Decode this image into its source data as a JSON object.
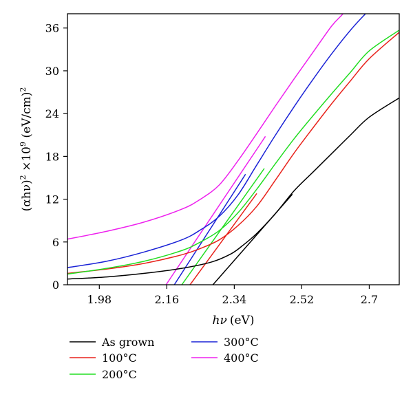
{
  "chart_data": {
    "type": "line",
    "title": "",
    "xlabel_symbol": "hν",
    "xlabel_unit": "(eV)",
    "ylabel_parts": {
      "lhs": "(αhν)",
      "sup1": "2",
      "mid": " ×10",
      "sup2": "9",
      "unit": " (eV/cm)",
      "sup3": "2"
    },
    "xlim": [
      1.895,
      2.78
    ],
    "ylim": [
      0,
      38
    ],
    "x_ticks": [
      1.98,
      2.16,
      2.34,
      2.52,
      2.7
    ],
    "y_ticks": [
      0,
      6,
      12,
      18,
      24,
      30,
      36
    ],
    "x_tick_labels": [
      "1.98",
      "2.16",
      "2.34",
      "2.52",
      "2.7"
    ],
    "y_tick_labels": [
      "0",
      "6",
      "12",
      "18",
      "24",
      "30",
      "36"
    ],
    "grid": false,
    "legend_position": "below",
    "series": [
      {
        "name": "As grown",
        "color": "#000000",
        "x": [
          1.895,
          2.0,
          2.1,
          2.2,
          2.28,
          2.33,
          2.36,
          2.4,
          2.45,
          2.5,
          2.55,
          2.6,
          2.65,
          2.7,
          2.78
        ],
        "y": [
          0.8,
          1.1,
          1.6,
          2.3,
          3.2,
          4.3,
          5.4,
          7.2,
          10.0,
          13.2,
          15.8,
          18.4,
          21.0,
          23.5,
          26.2
        ],
        "fit_x": [
          2.283,
          2.495
        ],
        "fit_y": [
          0,
          12.7
        ]
      },
      {
        "name": "100°C",
        "color": "#e8221b",
        "x": [
          1.895,
          2.0,
          2.1,
          2.2,
          2.25,
          2.3,
          2.35,
          2.4,
          2.45,
          2.5,
          2.55,
          2.6,
          2.65,
          2.7,
          2.78
        ],
        "y": [
          1.6,
          2.2,
          3.0,
          4.2,
          5.1,
          6.3,
          8.3,
          11.0,
          14.7,
          18.5,
          22.0,
          25.4,
          28.6,
          31.7,
          35.4
        ],
        "fit_x": [
          2.222,
          2.4
        ],
        "fit_y": [
          0,
          12.8
        ]
      },
      {
        "name": "200°C",
        "color": "#22dd22",
        "x": [
          1.895,
          2.0,
          2.1,
          2.2,
          2.25,
          2.3,
          2.35,
          2.4,
          2.45,
          2.5,
          2.55,
          2.6,
          2.65,
          2.7,
          2.78
        ],
        "y": [
          1.5,
          2.3,
          3.3,
          4.8,
          6.0,
          7.6,
          10.1,
          13.4,
          17.0,
          20.5,
          23.7,
          26.8,
          29.8,
          32.8,
          35.7
        ],
        "fit_x": [
          2.2,
          2.42
        ],
        "fit_y": [
          0,
          16.3
        ]
      },
      {
        "name": "300°C",
        "color": "#1a22d6",
        "x": [
          1.895,
          2.0,
          2.1,
          2.2,
          2.25,
          2.3,
          2.35,
          2.4,
          2.45,
          2.5,
          2.55,
          2.6,
          2.65,
          2.69,
          2.72
        ],
        "y": [
          2.4,
          3.3,
          4.6,
          6.3,
          7.7,
          9.6,
          12.6,
          16.8,
          21.0,
          25.0,
          28.8,
          32.4,
          35.7,
          38.0,
          39.5
        ]
      },
      {
        "name": "400°C",
        "color": "#ee22ee",
        "x": [
          1.895,
          2.0,
          2.1,
          2.2,
          2.25,
          2.3,
          2.35,
          2.4,
          2.45,
          2.5,
          2.55,
          2.6,
          2.63,
          2.66
        ],
        "y": [
          6.4,
          7.5,
          8.8,
          10.6,
          12.0,
          14.0,
          17.4,
          21.2,
          25.1,
          28.9,
          32.6,
          36.3,
          38.0,
          40.0
        ]
      }
    ],
    "fit_lines_unlabeled": [
      {
        "color": "#1a22d6",
        "x": [
          2.18,
          2.37
        ],
        "y": [
          0,
          15.5
        ]
      },
      {
        "color": "#ee22ee",
        "x": [
          2.158,
          2.423
        ],
        "y": [
          0,
          20.8
        ]
      }
    ]
  }
}
